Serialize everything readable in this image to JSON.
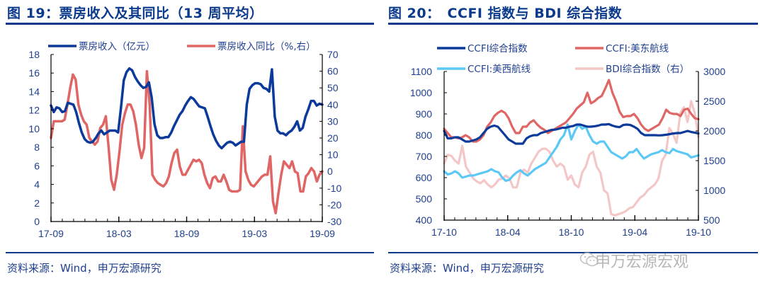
{
  "left": {
    "title": "图 19：票房收入及其同比（13 周平均）",
    "source": "资料来源：Wind，申万宏源研究",
    "legend": [
      {
        "label": "票房收入（亿元）",
        "color": "#0b3a9b"
      },
      {
        "label": "票房收入同比（%,右）",
        "color": "#e06666"
      }
    ],
    "y_left_ticks": [
      "18",
      "16",
      "14",
      "12",
      "10",
      "8",
      "6",
      "4",
      "2",
      "0"
    ],
    "y_right_ticks": [
      "70",
      "60",
      "50",
      "40",
      "30",
      "20",
      "10",
      "0",
      "-10",
      "-20",
      "-30"
    ],
    "x_ticks": [
      "17-09",
      "18-03",
      "18-09",
      "19-03",
      "19-09"
    ]
  },
  "right": {
    "title": "图 20：　CCFI 指数与 BDI 综合指数",
    "source": "资料来源：Wind，申万宏源研究",
    "legend": [
      {
        "label": "CCFI综合指数",
        "color": "#0b3a9b"
      },
      {
        "label": "CCFI:美东航线",
        "color": "#e06666"
      },
      {
        "label": "CCFI:美西航线",
        "color": "#5bc8f5"
      },
      {
        "label": "BDI综合指数（右）",
        "color": "#f4c7c7"
      }
    ],
    "y_left_ticks": [
      "1100",
      "1000",
      "900",
      "800",
      "700",
      "600",
      "500",
      "400"
    ],
    "y_right_ticks": [
      "3000",
      "2500",
      "2000",
      "1500",
      "1000",
      "500"
    ],
    "x_ticks": [
      "17-10",
      "18-04",
      "18-10",
      "19-04",
      "19-10"
    ]
  },
  "watermark": "申万宏源宏观",
  "chart_data": [
    {
      "type": "line",
      "title": "图 19：票房收入及其同比（13 周平均）",
      "xlabel": "",
      "ylabel": "票房收入（亿元）",
      "ylabel_right": "同比（%）",
      "ylim": [
        0,
        18
      ],
      "ylim_right": [
        -30,
        70
      ],
      "x_ticks": [
        "17-09",
        "18-03",
        "18-09",
        "19-03",
        "19-09"
      ],
      "legend_position": "top",
      "grid": false,
      "series": [
        {
          "name": "票房收入（亿元）",
          "axis": "left",
          "color": "#0b3a9b",
          "values": [
            12.5,
            11.8,
            12.3,
            12.2,
            11.8,
            11.9,
            12.8,
            12.7,
            12.6,
            11.8,
            10.6,
            9.6,
            8.9,
            8.6,
            8.5,
            8.6,
            9.0,
            9.5,
            9.8,
            9.4,
            9.6,
            9.8,
            9.8,
            9.8,
            9.6,
            12.2,
            15.2,
            16.1,
            16.5,
            16.3,
            15.6,
            15.1,
            14.7,
            14.4,
            14.5,
            15.0,
            13.4,
            10.5,
            9.3,
            9.0,
            9.0,
            9.1,
            9.1,
            9.6,
            10.3,
            10.9,
            11.5,
            11.9,
            12.5,
            13.0,
            13.4,
            13.2,
            12.8,
            12.4,
            12.3,
            12.2,
            11.3,
            10.3,
            9.4,
            8.7,
            8.2,
            7.9,
            8.2,
            8.5,
            8.6,
            8.5,
            8.2,
            8.4,
            8.6,
            8.6,
            12.6,
            14.3,
            14.7,
            14.9,
            14.9,
            14.8,
            14.4,
            14.3,
            14.0,
            16.4,
            11.3,
            9.8,
            9.5,
            9.5,
            9.3,
            9.6,
            9.8,
            10.2,
            10.8,
            9.8,
            10.1,
            11.3,
            12.1,
            13.0,
            13.0,
            12.5,
            12.7,
            12.6
          ]
        },
        {
          "name": "票房收入同比（%,右）",
          "axis": "right",
          "color": "#e06666",
          "values": [
            20,
            30,
            30,
            30,
            30,
            31,
            40,
            50,
            58,
            55,
            40,
            34,
            30,
            28,
            20,
            18,
            16,
            18,
            26,
            28,
            33,
            15,
            -5,
            -11,
            -2,
            12,
            28,
            35,
            40,
            40,
            36,
            28,
            16,
            8,
            14,
            60,
            40,
            -2,
            -5,
            -7,
            -8,
            -9,
            -7,
            -3,
            5,
            11,
            13,
            3,
            -2,
            -2,
            1,
            4,
            7,
            6,
            7,
            5,
            -2,
            -7,
            -10,
            -4,
            -3,
            -6,
            -6,
            -2,
            -6,
            -11,
            -12,
            -12,
            -12,
            -11,
            27,
            0,
            -5,
            -8,
            -9,
            -7,
            -5,
            -3,
            -2,
            -2,
            9,
            -18,
            -25,
            -13,
            -2,
            6,
            4,
            2,
            6,
            0,
            -1,
            -12,
            -12,
            -3,
            -1,
            2,
            0,
            -6,
            -2,
            0
          ]
        }
      ]
    },
    {
      "type": "line",
      "title": "图 20：CCFI 指数与 BDI 综合指数",
      "xlabel": "",
      "ylabel": "CCFI",
      "ylabel_right": "BDI",
      "ylim": [
        400,
        1100
      ],
      "ylim_right": [
        500,
        3000
      ],
      "x_ticks": [
        "17-10",
        "18-04",
        "18-10",
        "19-04",
        "19-10"
      ],
      "legend_position": "top",
      "grid": false,
      "series": [
        {
          "name": "CCFI综合指数",
          "axis": "left",
          "color": "#0b3a9b",
          "values": [
            820,
            785,
            785,
            790,
            790,
            780,
            770,
            770,
            775,
            780,
            790,
            810,
            830,
            840,
            845,
            840,
            820,
            800,
            780,
            770,
            760,
            760,
            760,
            785,
            795,
            800,
            800,
            810,
            815,
            820,
            825,
            826,
            830,
            835,
            835,
            840,
            843,
            850,
            850,
            845,
            840,
            840,
            842,
            845,
            850,
            850,
            852,
            845,
            840,
            838,
            848,
            850,
            848,
            840,
            830,
            810,
            800,
            800,
            800,
            800,
            799,
            800,
            802,
            805,
            808,
            810,
            810,
            815,
            820,
            815,
            812,
            808
          ]
        },
        {
          "name": "CCFI:美东航线",
          "axis": "left",
          "color": "#e06666",
          "values": [
            830,
            810,
            790,
            790,
            785,
            790,
            800,
            790,
            770,
            770,
            780,
            800,
            840,
            860,
            890,
            905,
            915,
            905,
            880,
            840,
            810,
            810,
            840,
            840,
            860,
            870,
            850,
            835,
            825,
            810,
            820,
            830,
            840,
            850,
            860,
            880,
            900,
            925,
            940,
            955,
            1000,
            950,
            960,
            975,
            985,
            1020,
            1060,
            1000,
            960,
            910,
            885,
            890,
            890,
            900,
            880,
            850,
            830,
            820,
            830,
            840,
            850,
            880,
            920,
            905,
            900,
            900,
            890,
            920,
            925,
            900,
            880,
            875
          ]
        },
        {
          "name": "CCFI:美西航线",
          "axis": "left",
          "color": "#5bc8f5",
          "values": [
            630,
            615,
            620,
            630,
            620,
            600,
            605,
            610,
            610,
            615,
            620,
            625,
            630,
            640,
            630,
            625,
            600,
            585,
            590,
            610,
            625,
            635,
            620,
            610,
            625,
            640,
            650,
            660,
            670,
            695,
            720,
            745,
            780,
            800,
            850,
            780,
            820,
            850,
            830,
            840,
            800,
            770,
            760,
            770,
            770,
            745,
            720,
            710,
            700,
            690,
            700,
            720,
            720,
            735,
            710,
            690,
            700,
            710,
            715,
            720,
            730,
            720,
            715,
            735,
            725,
            720,
            715,
            710,
            695,
            700,
            705
          ]
        },
        {
          "name": "BDI综合指数（右）",
          "axis": "right",
          "color": "#f4c7c7",
          "values": [
            1450,
            1600,
            1580,
            1500,
            1450,
            1750,
            1400,
            1300,
            1200,
            1150,
            1120,
            1170,
            1100,
            1050,
            1100,
            1180,
            1200,
            1250,
            1200,
            1050,
            1050,
            1300,
            1350,
            1300,
            1450,
            1550,
            1650,
            1700,
            1700,
            1650,
            1500,
            1400,
            1450,
            1400,
            1180,
            1250,
            1100,
            1050,
            1300,
            1400,
            1600,
            1650,
            1400,
            1300,
            1000,
            950,
            600,
            580,
            600,
            620,
            650,
            700,
            720,
            800,
            880,
            920,
            1000,
            1050,
            1100,
            1200,
            1500,
            1600,
            2050,
            1950,
            1800,
            2300,
            2400,
            2150,
            2500,
            2300,
            1900
          ]
        }
      ]
    }
  ]
}
